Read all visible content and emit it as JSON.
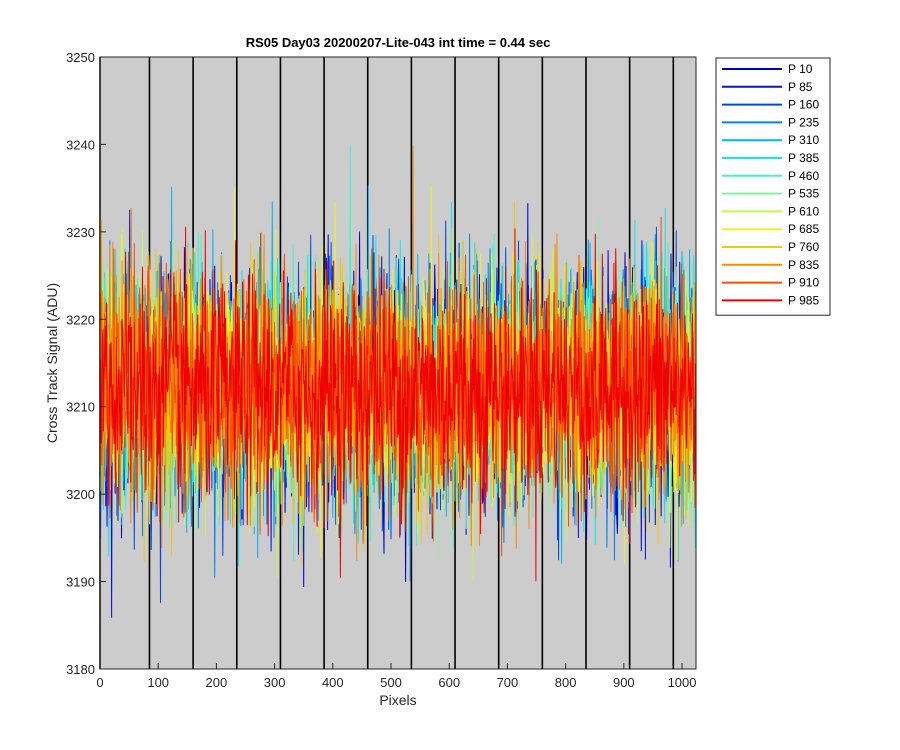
{
  "chart_data": {
    "type": "line",
    "title": "RS05 Day03 20200207-Lite-043 int time = 0.44 sec",
    "xlabel": "Pixels",
    "ylabel": "Cross Track Signal (ADU)",
    "xlim": [
      0,
      1024
    ],
    "ylim": [
      3180,
      3250
    ],
    "xticks": [
      0,
      100,
      200,
      300,
      400,
      500,
      600,
      700,
      800,
      900,
      1000
    ],
    "yticks": [
      3180,
      3190,
      3200,
      3210,
      3220,
      3230,
      3240,
      3250
    ],
    "background": "#cccccc",
    "grid": false,
    "legend_position": "outside-right",
    "boundary_lines_x": [
      0,
      85,
      160,
      235,
      310,
      385,
      460,
      535,
      610,
      685,
      760,
      835,
      910,
      985
    ],
    "series": [
      {
        "name": "P 10",
        "color": "#0000cc",
        "mean": 3212,
        "spread": 6.5
      },
      {
        "name": "P 85",
        "color": "#0014dd",
        "mean": 3212,
        "spread": 6.5
      },
      {
        "name": "P 160",
        "color": "#0046e6",
        "mean": 3212,
        "spread": 6.5
      },
      {
        "name": "P 235",
        "color": "#0082f0",
        "mean": 3212,
        "spread": 6.5
      },
      {
        "name": "P 310",
        "color": "#00b4f5",
        "mean": 3212,
        "spread": 6.5
      },
      {
        "name": "P 385",
        "color": "#10e6f0",
        "mean": 3212,
        "spread": 6.5
      },
      {
        "name": "P 460",
        "color": "#40f5c8",
        "mean": 3212,
        "spread": 6.5
      },
      {
        "name": "P 535",
        "color": "#82f5a0",
        "mean": 3212,
        "spread": 6.5
      },
      {
        "name": "P 610",
        "color": "#c8f550",
        "mean": 3212,
        "spread": 6.5
      },
      {
        "name": "P 685",
        "color": "#f0f020",
        "mean": 3212,
        "spread": 6.5
      },
      {
        "name": "P 760",
        "color": "#f5c800",
        "mean": 3212,
        "spread": 6.5
      },
      {
        "name": "P 835",
        "color": "#f58c00",
        "mean": 3212,
        "spread": 6.5
      },
      {
        "name": "P 910",
        "color": "#f55000",
        "mean": 3212,
        "spread": 6.5
      },
      {
        "name": "P 985",
        "color": "#f00000",
        "mean": 3212,
        "spread": 6.5
      }
    ]
  }
}
